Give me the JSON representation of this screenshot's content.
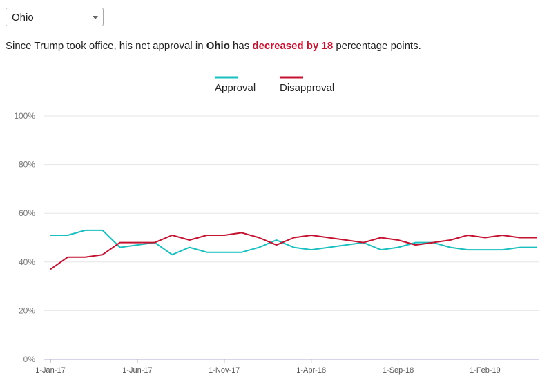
{
  "selector": {
    "value": "Ohio"
  },
  "summary": {
    "prefix": "Since Trump took office, his net approval in ",
    "state": "Ohio",
    "middle": " has ",
    "change": "decreased by 18",
    "suffix": " percentage points."
  },
  "colors": {
    "approval": "#1abfbf",
    "disapproval": "#c41230",
    "grid": "#e6e6e6",
    "axis": "#c8c8e0"
  },
  "chart_data": {
    "type": "line",
    "legend": [
      "Approval",
      "Disapproval"
    ],
    "x": [
      "2017-01",
      "2017-02",
      "2017-03",
      "2017-04",
      "2017-05",
      "2017-06",
      "2017-07",
      "2017-08",
      "2017-09",
      "2017-10",
      "2017-11",
      "2017-12",
      "2018-01",
      "2018-02",
      "2018-03",
      "2018-04",
      "2018-05",
      "2018-06",
      "2018-07",
      "2018-08",
      "2018-09",
      "2018-10",
      "2018-11",
      "2018-12",
      "2019-01",
      "2019-02",
      "2019-03",
      "2019-04",
      "2019-05"
    ],
    "x_tick_labels": [
      "1-Jan-17",
      "1-Jun-17",
      "1-Nov-17",
      "1-Apr-18",
      "1-Sep-18",
      "1-Feb-19"
    ],
    "x_tick_positions": [
      "2017-01",
      "2017-06",
      "2017-11",
      "2018-04",
      "2018-09",
      "2019-02"
    ],
    "y_tick_labels": [
      "0%",
      "20%",
      "40%",
      "60%",
      "80%",
      "100%"
    ],
    "ylim": [
      0,
      100
    ],
    "series": [
      {
        "name": "Approval",
        "values": [
          51,
          51,
          53,
          53,
          46,
          47,
          48,
          43,
          46,
          44,
          44,
          44,
          46,
          49,
          46,
          45,
          46,
          47,
          48,
          45,
          46,
          48,
          48,
          46,
          45,
          45,
          45,
          46,
          46
        ]
      },
      {
        "name": "Disapproval",
        "values": [
          37,
          42,
          42,
          43,
          48,
          48,
          48,
          51,
          49,
          51,
          51,
          52,
          50,
          47,
          50,
          51,
          50,
          49,
          48,
          50,
          49,
          47,
          48,
          49,
          51,
          50,
          51,
          50,
          50
        ]
      }
    ]
  }
}
